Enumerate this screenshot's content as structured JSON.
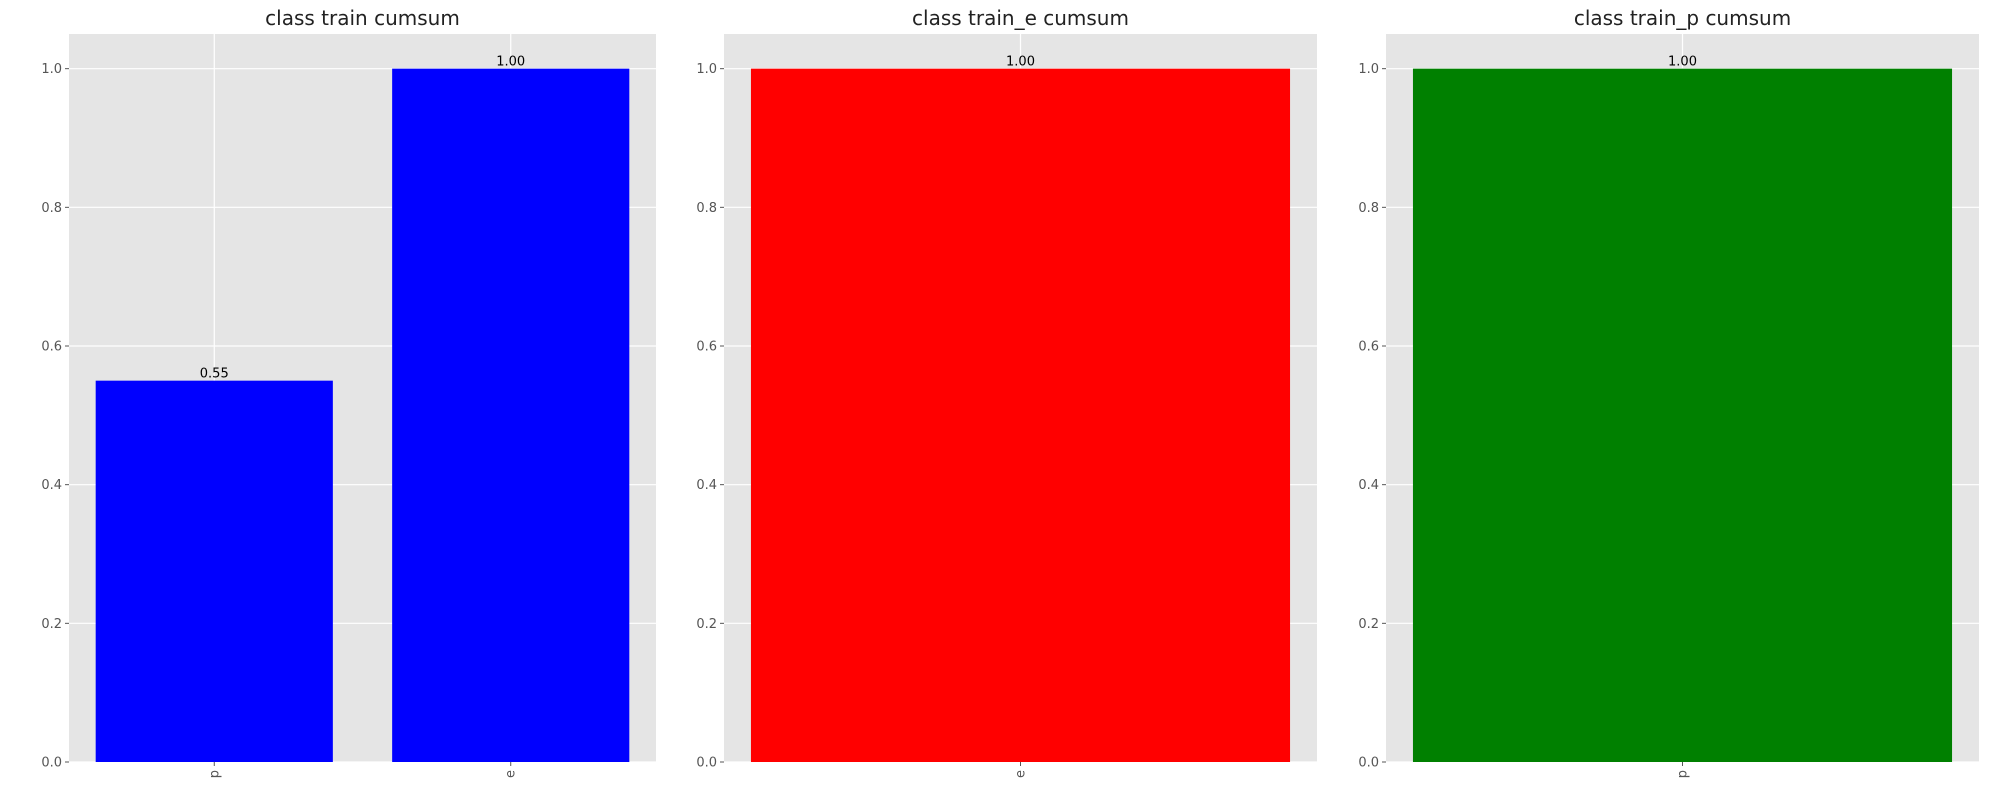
{
  "chart_data": [
    {
      "type": "bar",
      "title": "class train cumsum",
      "categories": [
        "p",
        "e"
      ],
      "values": [
        0.55,
        1.0
      ],
      "value_labels": [
        "0.55",
        "1.00"
      ],
      "color": "#0000ff",
      "ylim": [
        0,
        1.05
      ],
      "yticks": [
        0.0,
        0.2,
        0.4,
        0.6,
        0.8,
        1.0
      ],
      "ytick_labels": [
        "0.0",
        "0.2",
        "0.4",
        "0.6",
        "0.8",
        "1.0"
      ],
      "grid": true,
      "xlabel": "",
      "ylabel": ""
    },
    {
      "type": "bar",
      "title": "class train_e cumsum",
      "categories": [
        "e"
      ],
      "values": [
        1.0
      ],
      "value_labels": [
        "1.00"
      ],
      "color": "#ff0000",
      "ylim": [
        0,
        1.05
      ],
      "yticks": [
        0.0,
        0.2,
        0.4,
        0.6,
        0.8,
        1.0
      ],
      "ytick_labels": [
        "0.0",
        "0.2",
        "0.4",
        "0.6",
        "0.8",
        "1.0"
      ],
      "grid": true,
      "xlabel": "",
      "ylabel": ""
    },
    {
      "type": "bar",
      "title": "class train_p cumsum",
      "categories": [
        "p"
      ],
      "values": [
        1.0
      ],
      "value_labels": [
        "1.00"
      ],
      "color": "#008000",
      "ylim": [
        0,
        1.05
      ],
      "yticks": [
        0.0,
        0.2,
        0.4,
        0.6,
        0.8,
        1.0
      ],
      "ytick_labels": [
        "0.0",
        "0.2",
        "0.4",
        "0.6",
        "0.8",
        "1.0"
      ],
      "grid": true,
      "xlabel": "",
      "ylabel": ""
    }
  ]
}
